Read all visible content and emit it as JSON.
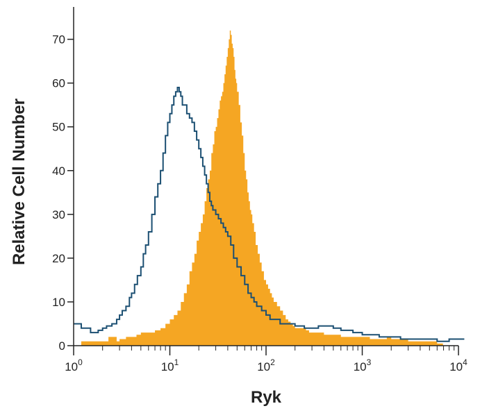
{
  "chart_data": {
    "type": "area",
    "xlabel": "Ryk",
    "ylabel": "Relative Cell Number",
    "x_scale": "log",
    "xlim": [
      1,
      10000
    ],
    "ylim": [
      0,
      72
    ],
    "x_ticks": [
      {
        "base": "10",
        "exp": "0",
        "value": 1
      },
      {
        "base": "10",
        "exp": "1",
        "value": 10
      },
      {
        "base": "10",
        "exp": "2",
        "value": 100
      },
      {
        "base": "10",
        "exp": "3",
        "value": 1000
      },
      {
        "base": "10",
        "exp": "4",
        "value": 10000
      }
    ],
    "y_ticks": [
      "0",
      "10",
      "20",
      "30",
      "40",
      "50",
      "60",
      "70"
    ],
    "grid": false,
    "series": [
      {
        "style": "filled",
        "color": "#f5a623",
        "x": [
          1.2,
          1.5,
          2,
          2.3,
          2.8,
          3,
          3.5,
          4,
          4.5,
          5,
          5.5,
          6,
          7,
          8,
          9,
          10,
          11,
          12,
          13,
          14,
          15,
          16,
          17,
          18,
          19,
          20,
          21,
          22,
          23,
          24,
          25,
          26,
          27,
          28,
          29,
          30,
          31,
          32,
          33,
          34,
          35,
          36,
          37,
          38,
          39,
          40,
          41,
          42,
          43,
          44,
          45,
          46,
          47,
          48,
          49,
          50,
          52,
          54,
          56,
          58,
          60,
          62,
          64,
          66,
          68,
          70,
          72,
          75,
          78,
          82,
          86,
          90,
          95,
          100,
          105,
          110,
          115,
          120,
          130,
          140,
          150,
          160,
          170,
          180,
          190,
          200,
          220,
          240,
          260,
          280,
          300,
          350,
          400,
          450,
          500,
          600,
          700,
          800,
          1000,
          1200,
          1500,
          1800,
          2000,
          2500,
          3000,
          3500,
          4000,
          5000,
          6000
        ],
        "values": [
          1,
          1,
          1,
          2,
          1,
          1.5,
          2,
          2,
          2.5,
          3,
          3,
          3,
          3.5,
          4,
          5,
          6,
          7,
          8,
          10,
          12,
          14,
          17,
          19,
          21,
          24,
          26,
          28,
          30,
          33,
          36,
          38,
          40,
          44,
          46,
          49,
          50,
          52,
          54,
          56,
          57,
          58,
          60,
          62,
          64,
          66,
          68,
          70,
          72,
          71,
          69,
          68,
          66,
          63,
          61,
          60,
          58,
          55,
          51,
          48,
          44,
          40,
          38,
          35,
          33,
          31,
          30,
          28,
          26,
          23,
          21,
          19,
          17,
          15,
          14,
          13,
          12,
          11,
          10,
          9,
          8,
          7,
          6,
          5.5,
          5,
          4.5,
          4,
          4,
          4,
          3.5,
          3,
          3,
          3,
          2.5,
          2.5,
          2.5,
          2,
          2,
          2,
          2,
          1.5,
          1.5,
          2,
          1.5,
          1.5,
          1,
          1,
          1,
          1,
          0.5
        ]
      },
      {
        "style": "outline",
        "color": "#1b4f72",
        "x": [
          1,
          1.2,
          1.5,
          1.8,
          2,
          2.2,
          2.5,
          2.8,
          3,
          3.2,
          3.5,
          3.8,
          4,
          4.3,
          4.6,
          5,
          5.3,
          5.6,
          6,
          6.5,
          7,
          7.5,
          8,
          8.5,
          9,
          9.5,
          10,
          10.5,
          11,
          11.5,
          12,
          12.5,
          13,
          13.5,
          14,
          15,
          16,
          17,
          18,
          19,
          20,
          21,
          22,
          23,
          24,
          25,
          26,
          27,
          28,
          30,
          32,
          34,
          36,
          38,
          40,
          43,
          46,
          50,
          55,
          60,
          65,
          70,
          75,
          80,
          90,
          100,
          110,
          120,
          140,
          160,
          180,
          200,
          250,
          300,
          350,
          400,
          500,
          600,
          700,
          800,
          1000,
          1200,
          1500,
          2000,
          2500,
          3000,
          4000,
          5000,
          6000,
          7000,
          8000,
          10000
        ],
        "values": [
          5,
          4,
          3,
          3.5,
          4,
          4.5,
          5,
          6,
          7,
          8,
          9,
          11,
          12,
          14,
          16,
          18,
          21,
          23,
          26,
          30,
          34,
          37,
          40,
          44,
          48,
          51,
          53,
          55,
          57,
          58,
          59,
          58,
          57,
          55,
          55,
          53,
          52,
          51,
          49,
          47,
          45,
          43,
          41,
          39,
          37,
          35,
          33,
          32,
          31,
          30,
          29,
          28,
          27,
          26,
          25,
          23,
          20,
          18,
          16,
          14,
          12,
          11,
          10,
          9,
          8,
          7,
          6,
          6,
          5,
          5,
          5,
          4.5,
          4,
          4,
          4.5,
          4.5,
          4,
          3.5,
          3.5,
          3,
          2.5,
          2.5,
          2,
          2,
          1.5,
          1.5,
          1.5,
          1.5,
          1,
          1,
          1.5,
          1.5
        ]
      }
    ]
  }
}
